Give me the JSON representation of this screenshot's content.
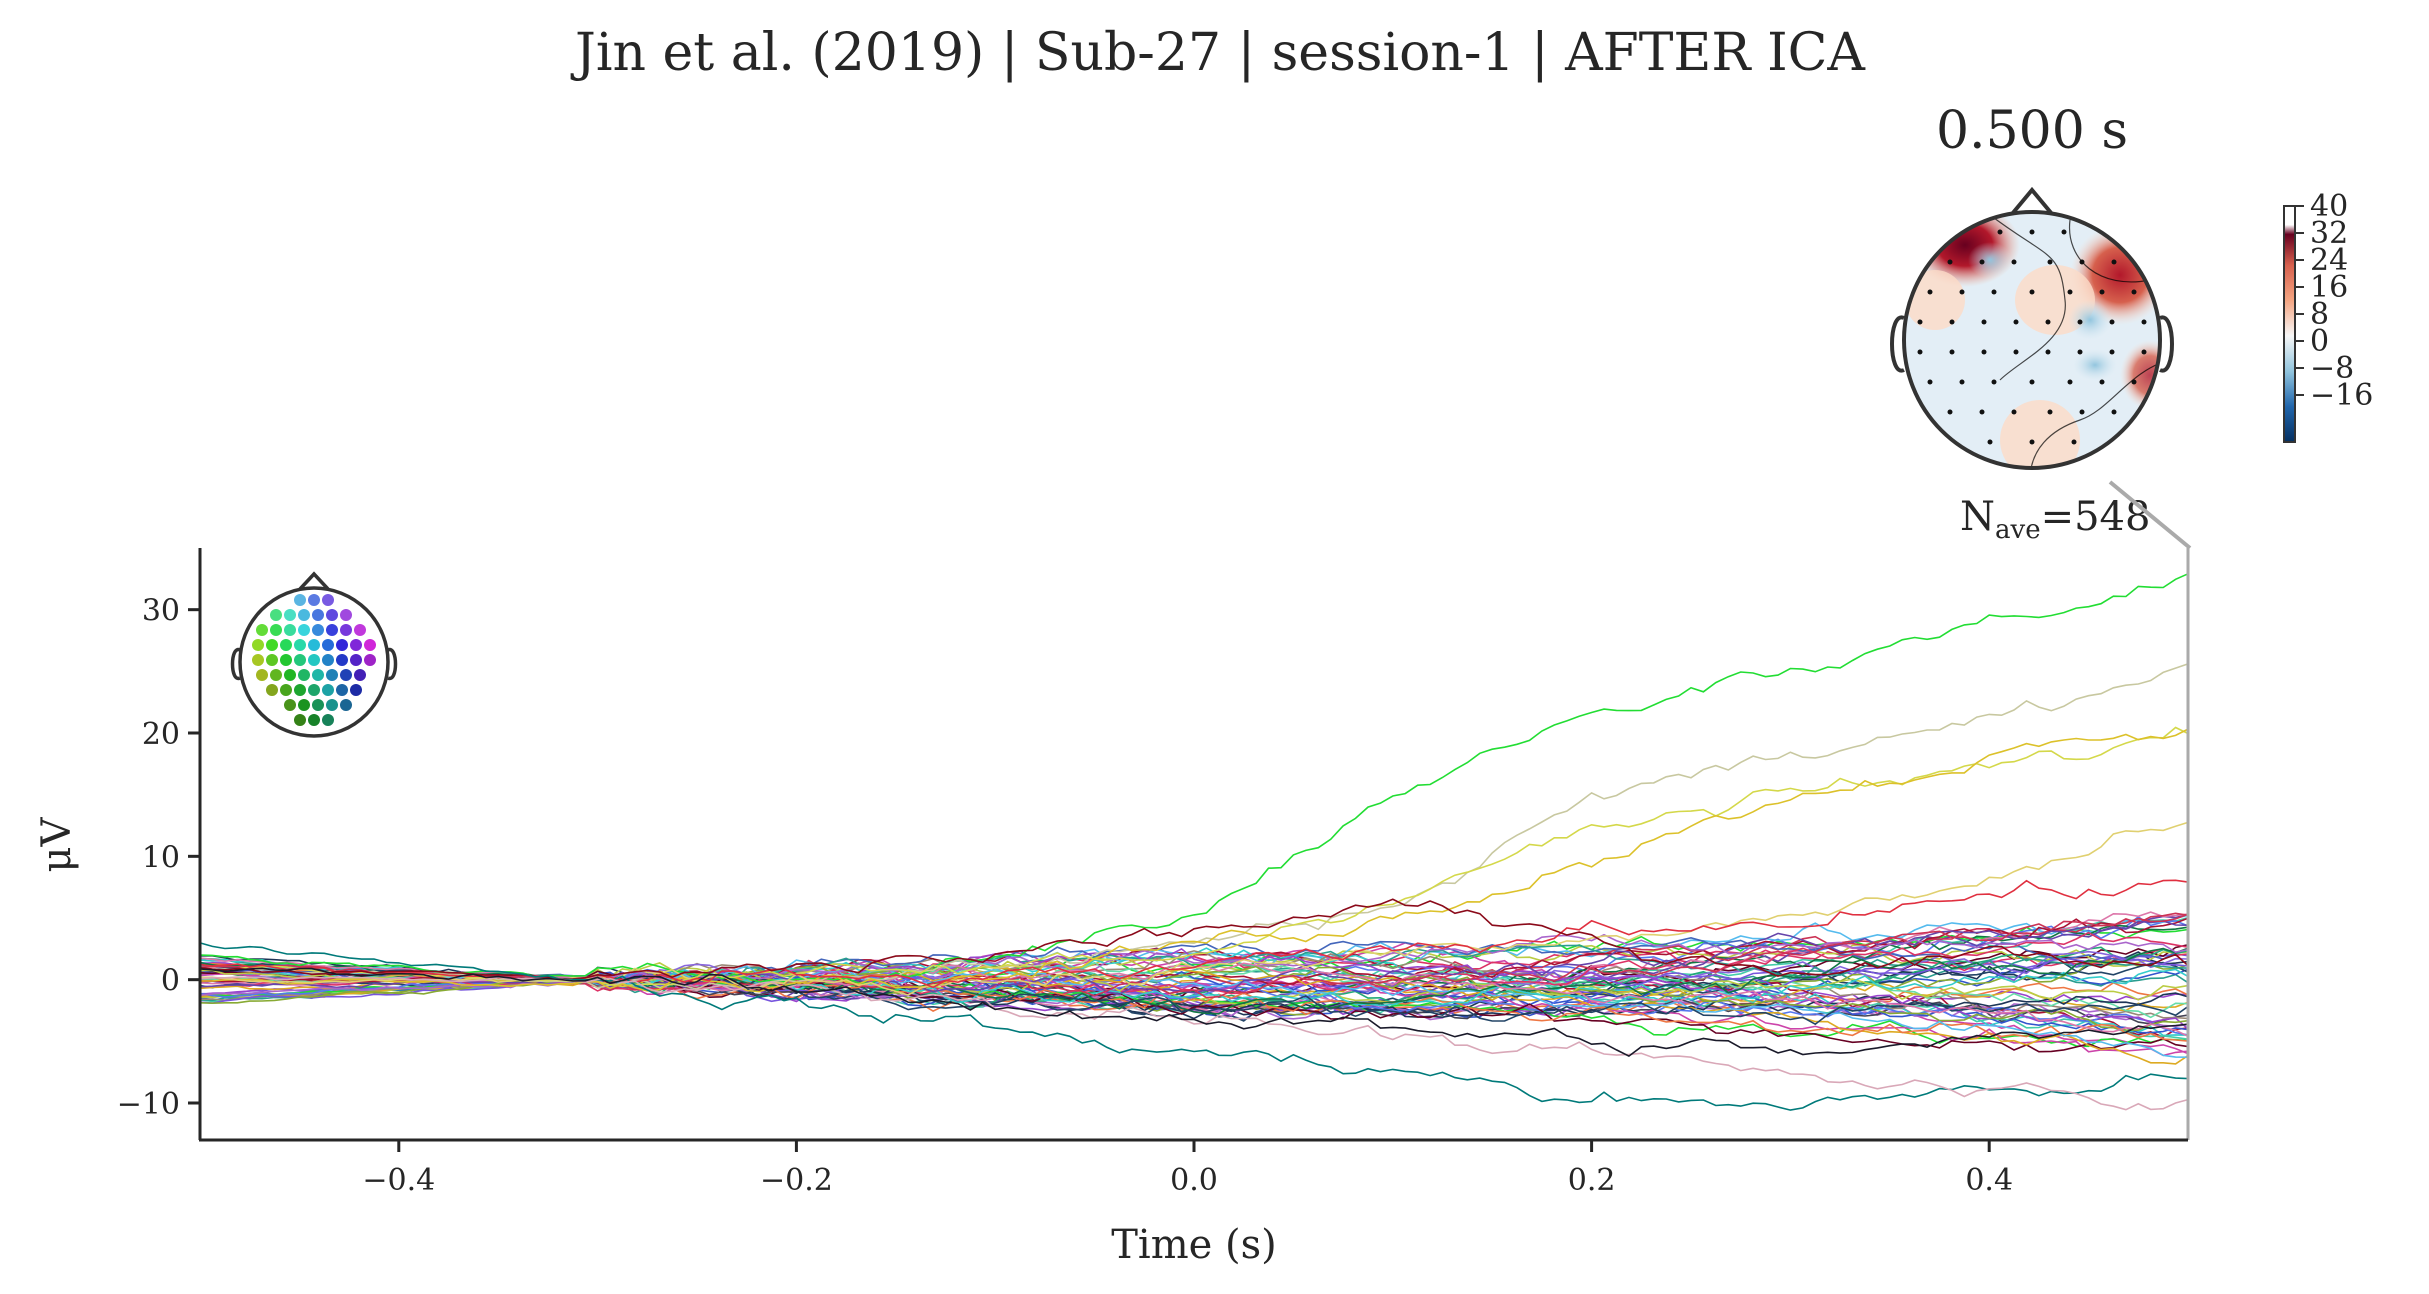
{
  "figure": {
    "title": "Jin et al. (2019) | Sub-27 | session-1 | AFTER ICA"
  },
  "topomap": {
    "time_label": "0.500 s",
    "colorbar_ticks": [
      "40",
      "32",
      "24",
      "16",
      "8",
      "0",
      "−8",
      "−16"
    ],
    "colormap": [
      "#053061",
      "#2166ac",
      "#4393c3",
      "#92c5de",
      "#d1e5f0",
      "#f7f7f7",
      "#fddbc7",
      "#f4a582",
      "#d6604d",
      "#b2182b",
      "#67001f"
    ]
  },
  "nave": {
    "prefix": "N",
    "sub": "ave",
    "value": "=548"
  },
  "chart_data": {
    "type": "line",
    "xlabel": "Time (s)",
    "ylabel": "μV",
    "xlim": [
      -0.5,
      0.5
    ],
    "ylim": [
      -13,
      35
    ],
    "xticks": [
      "−0.4",
      "−0.2",
      "0.0",
      "0.2",
      "0.4"
    ],
    "xtick_values": [
      -0.4,
      -0.2,
      0.0,
      0.2,
      0.4
    ],
    "yticks": [
      "30",
      "20",
      "10",
      "0",
      "−10"
    ],
    "ytick_values": [
      30,
      20,
      10,
      0,
      -10
    ],
    "grid": false,
    "legend": "none",
    "n_channels": 64,
    "sample_times": [
      -0.5,
      -0.3,
      -0.2,
      -0.1,
      0.0,
      0.1,
      0.2,
      0.3,
      0.4,
      0.5
    ],
    "highlighted_series": [
      {
        "color": "#22dd33",
        "values": [
          2,
          0,
          0.5,
          2,
          5,
          15,
          22,
          25,
          29,
          32.5
        ]
      },
      {
        "color": "#c8c8a0",
        "values": [
          1,
          0,
          0,
          1,
          3,
          6,
          15,
          18,
          21,
          26
        ]
      },
      {
        "color": "#d4d84a",
        "values": [
          1,
          0,
          0,
          1,
          2,
          7,
          12,
          15,
          17,
          20
        ]
      },
      {
        "color": "#dcc12a",
        "values": [
          0,
          0,
          0,
          0,
          3,
          5,
          10,
          15,
          18,
          20
        ]
      },
      {
        "color": "#e0d070",
        "values": [
          0,
          0,
          0,
          0,
          1,
          2,
          3,
          5,
          8,
          12.5
        ]
      },
      {
        "color": "#e03040",
        "values": [
          1,
          0,
          0,
          0,
          1,
          2,
          4,
          5,
          7,
          7.5
        ]
      },
      {
        "color": "#8b0a1a",
        "values": [
          1,
          0,
          1,
          2,
          4,
          6,
          3,
          1,
          2,
          1.5
        ]
      },
      {
        "color": "#007a7a",
        "values": [
          3,
          0,
          -2,
          -4,
          -6,
          -7,
          -10,
          -10,
          -9,
          -8
        ]
      },
      {
        "color": "#d9a8b8",
        "values": [
          0,
          0,
          -1,
          -2,
          -3,
          -4,
          -6,
          -8,
          -9,
          -10.5
        ]
      },
      {
        "color": "#1a1a2a",
        "values": [
          1,
          0,
          -1,
          -2,
          -3,
          -4,
          -5,
          -6,
          -5,
          -4
        ]
      }
    ],
    "channel_palette": [
      "#22dd33",
      "#44ccaa",
      "#2a9d8f",
      "#1d3557",
      "#3355cc",
      "#5577ee",
      "#7755dd",
      "#9944cc",
      "#cc44aa",
      "#dd3366",
      "#aa1133",
      "#660022",
      "#88aa33",
      "#bbcc44",
      "#ddaa22",
      "#ee7744",
      "#55bbee",
      "#33cccc",
      "#117744",
      "#224466",
      "#6644aa",
      "#aa66cc",
      "#dd77aa",
      "#cc3355",
      "#444455",
      "#998877",
      "#66ddaa",
      "#22aa77",
      "#4466bb",
      "#8866dd"
    ]
  }
}
